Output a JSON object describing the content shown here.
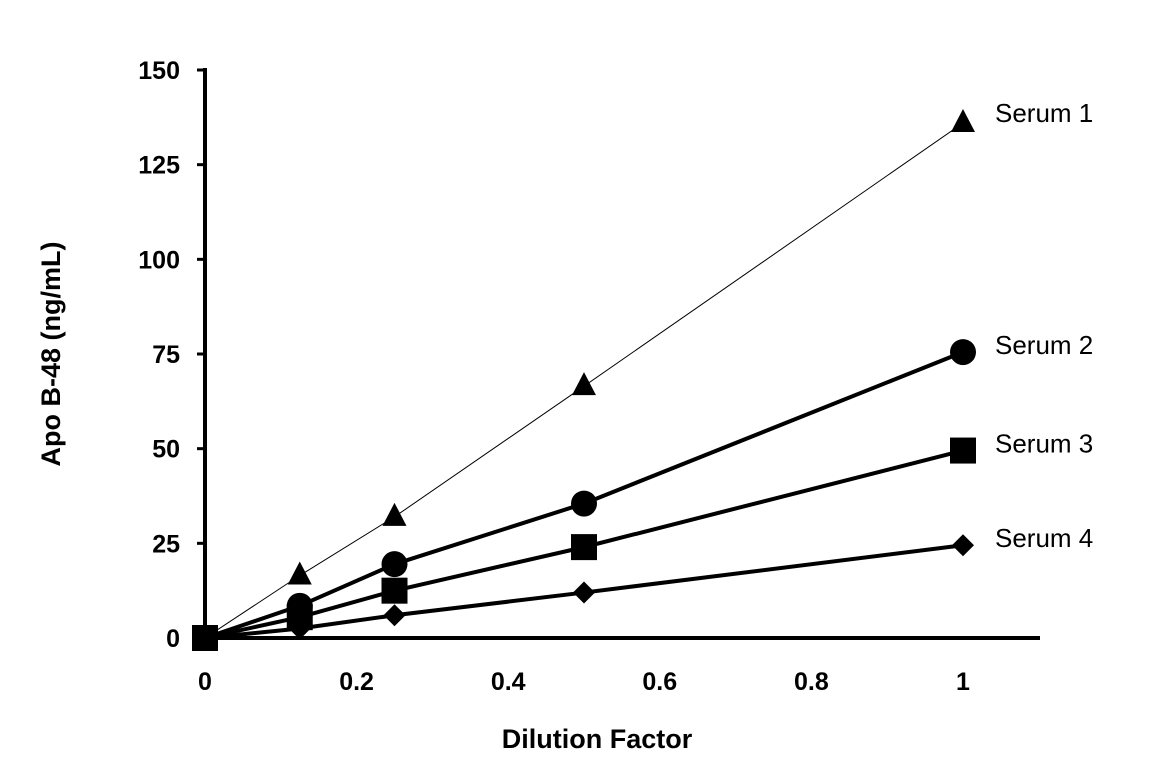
{
  "chart_data": {
    "type": "line",
    "title": "",
    "xlabel": "Dilution Factor",
    "ylabel": "Apo B-48 (ng/mL)",
    "xlim": [
      0,
      1
    ],
    "ylim": [
      0,
      150
    ],
    "xticks": [
      "0",
      "0.2",
      "0.4",
      "0.6",
      "0.8",
      "1"
    ],
    "xtick_values": [
      0,
      0.2,
      0.4,
      0.6,
      0.8,
      1
    ],
    "yticks": [
      "0",
      "25",
      "50",
      "75",
      "100",
      "125",
      "150"
    ],
    "ytick_values": [
      0,
      25,
      50,
      75,
      100,
      125,
      150
    ],
    "grid": false,
    "legend": "series labels at line ends (right)",
    "x": [
      0,
      0.125,
      0.25,
      0.5,
      1
    ],
    "series": [
      {
        "name": "Serum 1",
        "marker": "triangle",
        "line": "thin",
        "values": [
          0,
          16.5,
          32,
          66.5,
          136
        ],
        "color": "#000000"
      },
      {
        "name": "Serum 2",
        "marker": "circle",
        "line": "thick",
        "values": [
          0,
          8.5,
          19.5,
          35.5,
          75.5
        ],
        "color": "#000000"
      },
      {
        "name": "Serum 3",
        "marker": "square",
        "line": "thick",
        "values": [
          0,
          5.5,
          12.5,
          24,
          49.5
        ],
        "color": "#000000"
      },
      {
        "name": "Serum 4",
        "marker": "diamond",
        "line": "thick",
        "values": [
          0,
          2.5,
          6,
          12,
          24.5
        ],
        "color": "#000000"
      }
    ]
  }
}
